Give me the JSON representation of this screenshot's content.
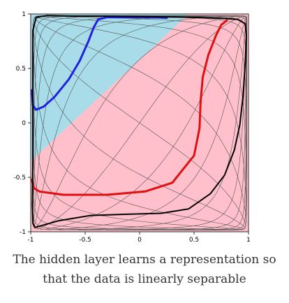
{
  "chart_data": {
    "type": "line",
    "title": "",
    "xlabel": "",
    "ylabel": "",
    "xlim": [
      -1,
      1
    ],
    "ylim": [
      -1,
      1
    ],
    "x_ticks": [
      "-1",
      "-0.5",
      "0",
      "0.5",
      "1"
    ],
    "y_ticks": [
      "-1",
      "-0.5",
      "0",
      "0.5",
      "1"
    ],
    "grid": "deformed tanh grid overlay",
    "background_regions": [
      {
        "name": "blue class region",
        "color": "#a8dce8",
        "boundary": [
          [
            -1,
            1
          ],
          [
            0.45,
            1
          ],
          [
            -1,
            -0.35
          ]
        ]
      },
      {
        "name": "pink class region",
        "color": "#ffc0cb"
      }
    ],
    "series": [
      {
        "color": "#2020e0",
        "points": [
          [
            -0.99,
            0.3
          ],
          [
            -0.98,
            0.16
          ],
          [
            -0.95,
            0.12
          ],
          [
            -0.88,
            0.15
          ],
          [
            -0.78,
            0.24
          ],
          [
            -0.65,
            0.4
          ],
          [
            -0.55,
            0.57
          ],
          [
            -0.47,
            0.75
          ],
          [
            -0.42,
            0.88
          ],
          [
            -0.38,
            0.95
          ],
          [
            -0.3,
            0.97
          ],
          [
            -0.1,
            0.97
          ],
          [
            0.1,
            0.97
          ],
          [
            0.25,
            0.965
          ]
        ]
      },
      {
        "color": "#e01010",
        "points": [
          [
            -0.99,
            -0.52
          ],
          [
            -0.97,
            -0.6
          ],
          [
            -0.92,
            -0.63
          ],
          [
            -0.7,
            -0.66
          ],
          [
            -0.3,
            -0.66
          ],
          [
            0.05,
            -0.63
          ],
          [
            0.3,
            -0.55
          ],
          [
            0.5,
            -0.3
          ],
          [
            0.55,
            -0.05
          ],
          [
            0.56,
            0.2
          ],
          [
            0.58,
            0.42
          ],
          [
            0.63,
            0.62
          ],
          [
            0.7,
            0.8
          ],
          [
            0.75,
            0.9
          ],
          [
            0.8,
            0.94
          ]
        ]
      },
      {
        "color": "#000000",
        "points": [
          [
            -0.96,
            -0.96
          ],
          [
            -0.75,
            -0.9
          ],
          [
            -0.45,
            -0.85
          ],
          [
            -0.15,
            -0.84
          ],
          [
            0.2,
            -0.83
          ],
          [
            0.45,
            -0.79
          ],
          [
            0.65,
            -0.65
          ],
          [
            0.78,
            -0.48
          ],
          [
            0.87,
            -0.25
          ],
          [
            0.92,
            -0.02
          ],
          [
            0.95,
            0.25
          ],
          [
            0.97,
            0.55
          ],
          [
            0.98,
            0.8
          ],
          [
            0.97,
            0.91
          ],
          [
            0.9,
            0.95
          ],
          [
            0.75,
            0.96
          ],
          [
            0.5,
            0.97
          ],
          [
            0.1,
            0.975
          ],
          [
            -0.3,
            0.98
          ],
          [
            -0.6,
            0.98
          ],
          [
            -0.85,
            0.985
          ],
          [
            -0.95,
            0.97
          ],
          [
            -0.98,
            0.85
          ],
          [
            -0.98,
            0.5
          ],
          [
            -0.98,
            0.1
          ],
          [
            -0.98,
            -0.35
          ],
          [
            -0.985,
            -0.75
          ],
          [
            -0.98,
            -0.92
          ],
          [
            -0.96,
            -0.96
          ]
        ]
      }
    ]
  },
  "caption": {
    "line1": "The hidden layer learns a representation so",
    "line2": "that the data is linearly separable"
  }
}
